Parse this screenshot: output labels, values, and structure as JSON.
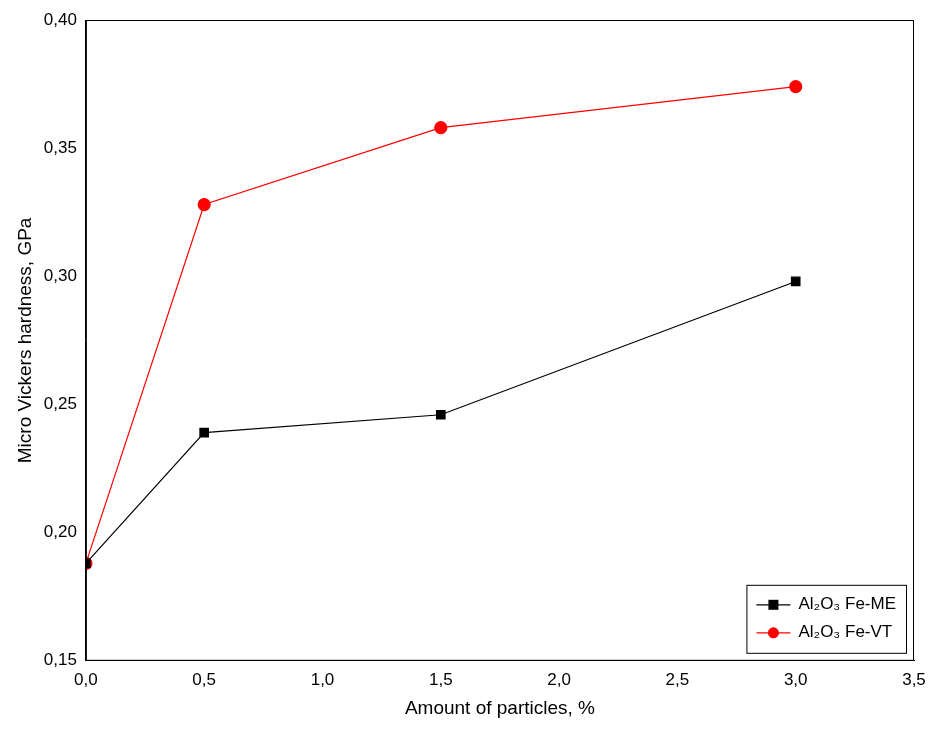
{
  "chart_data": {
    "type": "line",
    "x_label": "Amount of particles, %",
    "y_label": "Micro Vickers hardness, GPa",
    "series": [
      {
        "name": "Al₂O₃ Fe-ME",
        "color": "#000000",
        "marker": "square",
        "line_style": "solid",
        "x": [
          0.0,
          0.5,
          1.5,
          3.0
        ],
        "values": [
          0.188,
          0.239,
          0.246,
          0.298
        ]
      },
      {
        "name": "Al₂O₃ Fe-VT",
        "color": "#ff0000",
        "marker": "circle",
        "line_style": "solid",
        "x": [
          0.0,
          0.5,
          1.5,
          3.0
        ],
        "values": [
          0.188,
          0.328,
          0.358,
          0.374
        ]
      }
    ],
    "xlim": [
      0.0,
      3.5
    ],
    "xticks": [
      {
        "value": 0.0,
        "label": "0,0"
      },
      {
        "value": 0.5,
        "label": "0,5"
      },
      {
        "value": 1.0,
        "label": "1,0"
      },
      {
        "value": 1.5,
        "label": "1,5"
      },
      {
        "value": 2.0,
        "label": "2,0"
      },
      {
        "value": 2.5,
        "label": "2,5"
      },
      {
        "value": 3.0,
        "label": "3,0"
      },
      {
        "value": 3.5,
        "label": "3,5"
      }
    ],
    "ylim": [
      0.15,
      0.4
    ],
    "yticks": [
      {
        "value": 0.15,
        "label": "0,15"
      },
      {
        "value": 0.2,
        "label": "0,20"
      },
      {
        "value": 0.25,
        "label": "0,25"
      },
      {
        "value": 0.3,
        "label": "0,30"
      },
      {
        "value": 0.35,
        "label": "0,35"
      },
      {
        "value": 0.4,
        "label": "0,40"
      }
    ],
    "grid": false,
    "legend": "lower right"
  }
}
